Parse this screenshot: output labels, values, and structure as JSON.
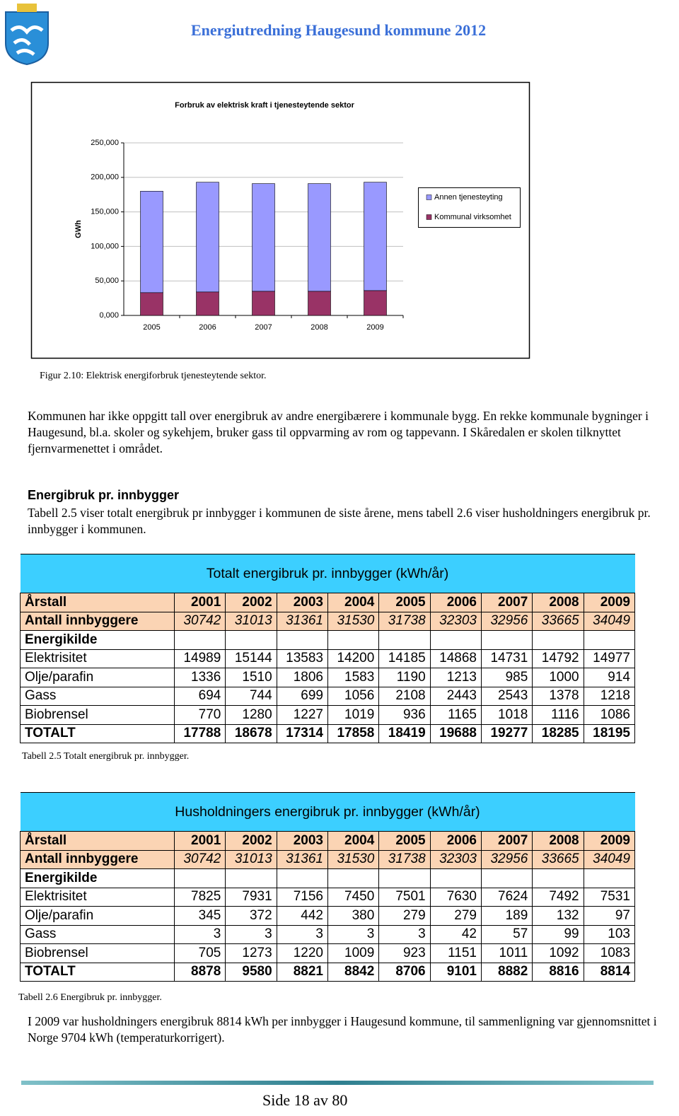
{
  "header": {
    "title": "Energiutredning Haugesund kommune 2012"
  },
  "chart_data": {
    "type": "bar",
    "stacked": true,
    "title": "Forbruk av elektrisk kraft i tjenesteytende sektor",
    "y_label": "GWh",
    "categories": [
      "2005",
      "2006",
      "2007",
      "2008",
      "2009"
    ],
    "series": [
      {
        "name": "Kommunal virksomhet",
        "color": "#993366",
        "values": [
          33000,
          34000,
          35000,
          35000,
          36000
        ]
      },
      {
        "name": "Annen tjenesteyting",
        "color": "#9999ff",
        "values": [
          147000,
          159000,
          156000,
          156000,
          157000
        ]
      }
    ],
    "ylim": [
      0,
      250000
    ],
    "yticks": [
      {
        "value": 0,
        "label": "0,000"
      },
      {
        "value": 50000,
        "label": "50,000"
      },
      {
        "value": 100000,
        "label": "100,000"
      },
      {
        "value": 150000,
        "label": "150,000"
      },
      {
        "value": 200000,
        "label": "200,000"
      },
      {
        "value": 250000,
        "label": "250,000"
      }
    ],
    "grid": true,
    "legend": "right"
  },
  "figure_caption": "Figur 2.10: Elektrisk energiforbruk tjenesteytende sektor.",
  "paragraphs": [
    "Kommunen har ikke oppgitt tall over energibruk av andre energibærere i kommunale bygg. En rekke kommunale bygninger i Haugesund, bl.a. skoler og sykehjem, bruker gass til oppvarming av rom og tappevann. I Skåredalen er skolen tilknyttet fjernvarmenettet i området.",
    "Tabell 2.5 viser totalt energibruk pr innbygger i kommunen de siste årene, mens tabell 2.6 viser husholdningers energibruk pr. innbygger i kommunen.",
    "I 2009 var husholdningers energibruk 8814 kWh per innbygger i Haugesund kommune, til sammenligning var gjennomsnittet i Norge 9704 kWh (temperaturkorrigert)."
  ],
  "section_heading": "Energibruk pr. innbygger",
  "tables": [
    {
      "title": "Totalt energibruk pr. innbygger (kWh/år)",
      "caption": "Tabell 2.5  Totalt energibruk pr. innbygger.",
      "rows": [
        {
          "label": "Årstall",
          "cells": [
            2001,
            2002,
            2003,
            2004,
            2005,
            2006,
            2007,
            2008,
            2009
          ]
        },
        {
          "label": "Antall innbyggere",
          "cells": [
            30742,
            31013,
            31361,
            31530,
            31738,
            32303,
            32956,
            33665,
            34049
          ]
        },
        {
          "label": "Energikilde"
        },
        {
          "label": "Elektrisitet",
          "cells": [
            14989,
            15144,
            13583,
            14200,
            14185,
            14868,
            14731,
            14792,
            14977
          ]
        },
        {
          "label": "Olje/parafin",
          "cells": [
            1336,
            1510,
            1806,
            1583,
            1190,
            1213,
            985,
            1000,
            914
          ]
        },
        {
          "label": "Gass",
          "cells": [
            694,
            744,
            699,
            1056,
            2108,
            2443,
            2543,
            1378,
            1218
          ]
        },
        {
          "label": "Biobrensel",
          "cells": [
            770,
            1280,
            1227,
            1019,
            936,
            1165,
            1018,
            1116,
            1086
          ]
        },
        {
          "label": "TOTALT",
          "cells": [
            17788,
            18678,
            17314,
            17858,
            18419,
            19688,
            19277,
            18285,
            18195
          ]
        }
      ]
    },
    {
      "title": "Husholdningers energibruk pr. innbygger (kWh/år)",
      "caption": "Tabell 2.6  Energibruk pr. innbygger.",
      "rows": [
        {
          "label": "Årstall",
          "cells": [
            2001,
            2002,
            2003,
            2004,
            2005,
            2006,
            2007,
            2008,
            2009
          ]
        },
        {
          "label": "Antall innbyggere",
          "cells": [
            30742,
            31013,
            31361,
            31530,
            31738,
            32303,
            32956,
            33665,
            34049
          ]
        },
        {
          "label": "Energikilde"
        },
        {
          "label": "Elektrisitet",
          "cells": [
            7825,
            7931,
            7156,
            7450,
            7501,
            7630,
            7624,
            7492,
            7531
          ]
        },
        {
          "label": "Olje/parafin",
          "cells": [
            345,
            372,
            442,
            380,
            279,
            279,
            189,
            132,
            97
          ]
        },
        {
          "label": "Gass",
          "cells": [
            3,
            3,
            3,
            3,
            3,
            42,
            57,
            99,
            103
          ]
        },
        {
          "label": "Biobrensel",
          "cells": [
            705,
            1273,
            1220,
            1009,
            923,
            1151,
            1011,
            1092,
            1083
          ]
        },
        {
          "label": "TOTALT",
          "cells": [
            8878,
            9580,
            8821,
            8842,
            8706,
            9101,
            8882,
            8816,
            8814
          ]
        }
      ]
    }
  ],
  "footer": {
    "page": "Side 18 av 80"
  }
}
